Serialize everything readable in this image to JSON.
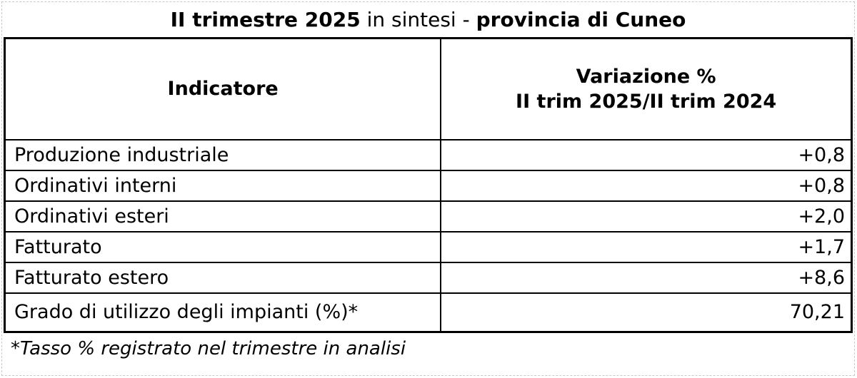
{
  "title": {
    "period": "II trimestre 2025",
    "connector": " in sintesi - ",
    "region": "provincia di Cuneo"
  },
  "table": {
    "col1_header": "Indicatore",
    "col2_header_line1": "Variazione %",
    "col2_header_line2": "II trim 2025/II trim 2024",
    "rows": [
      {
        "indicator": "Produzione industriale",
        "value": "+0,8"
      },
      {
        "indicator": "Ordinativi interni",
        "value": "+0,8"
      },
      {
        "indicator": "Ordinativi esteri",
        "value": "+2,0"
      },
      {
        "indicator": "Fatturato",
        "value": "+1,7"
      },
      {
        "indicator": "Fatturato estero",
        "value": "+8,6"
      },
      {
        "indicator": "Grado di utilizzo degli impianti (%)*",
        "value": "70,21"
      }
    ]
  },
  "footnote": "*Tasso % registrato nel trimestre in analisi",
  "colors": {
    "text": "#000000",
    "background": "#ffffff",
    "table_border": "#000000",
    "outer_dashed_border": "#c9c9c9"
  }
}
